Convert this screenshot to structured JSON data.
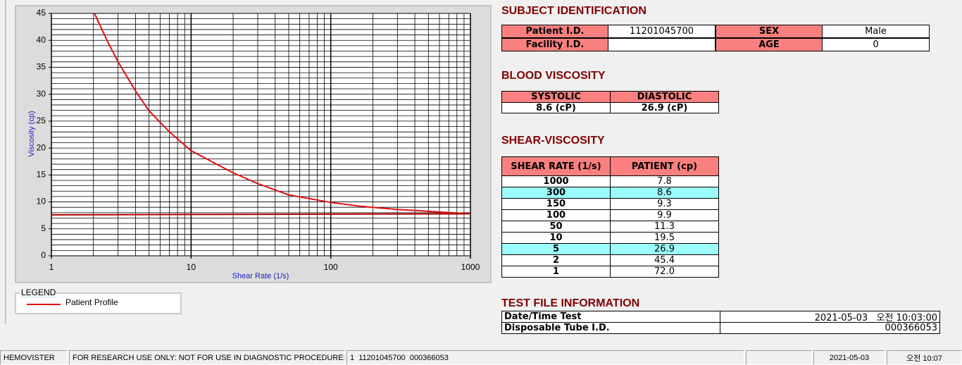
{
  "chart_data": {
    "type": "line",
    "x_label": "Shear Rate (1/s)",
    "y_label": "Viscosity (cp)",
    "xlim": [
      1,
      1000
    ],
    "xticks": [
      1,
      10,
      100,
      1000
    ],
    "xscale": "log",
    "ylim": [
      0,
      45
    ],
    "yticks": [
      0,
      5,
      10,
      15,
      20,
      25,
      30,
      35,
      40,
      45
    ],
    "grid": true,
    "legend_title": "LEGEND",
    "series": [
      {
        "name": "Patient Profile",
        "color": "#e01010",
        "x": [
          2,
          2.5,
          3,
          4,
          5,
          7,
          10,
          20,
          30,
          50,
          100,
          150,
          200,
          300,
          500,
          1000
        ],
        "values": [
          45.4,
          40.0,
          36.0,
          30.6,
          26.9,
          23.0,
          19.5,
          15.4,
          13.4,
          11.3,
          9.9,
          9.3,
          9.0,
          8.6,
          8.25,
          7.8
        ]
      },
      {
        "color": "#b00000",
        "x": [
          1,
          1000
        ],
        "values": [
          7.6,
          7.8
        ]
      }
    ]
  },
  "subject": {
    "title": "SUBJECT IDENTIFICATION",
    "fields": [
      {
        "label": "Patient I.D.",
        "value": "11201045700"
      },
      {
        "label": "SEX",
        "value": "Male"
      },
      {
        "label": "Facility I.D."
      },
      {
        "label": "AGE",
        "value": "0"
      }
    ]
  },
  "blood": {
    "title": "BLOOD VISCOSITY",
    "headers": [
      "SYSTOLIC",
      "DIASTOLIC"
    ],
    "values": [
      "8.6 (cP)",
      "26.9 (cP)"
    ]
  },
  "shear": {
    "title": "SHEAR-VISCOSITY",
    "headers": [
      "SHEAR RATE (1/s)",
      "PATIENT (cp)"
    ],
    "rows": [
      {
        "rate": "1000",
        "cp": "7.8"
      },
      {
        "rate": "300",
        "cp": "8.6",
        "highlighted": true
      },
      {
        "rate": "150",
        "cp": "9.3"
      },
      {
        "rate": "100",
        "cp": "9.9"
      },
      {
        "rate": "50",
        "cp": "11.3"
      },
      {
        "rate": "10",
        "cp": "19.5"
      },
      {
        "rate": "5",
        "cp": "26.9",
        "highlighted": true
      },
      {
        "rate": "2",
        "cp": "45.4"
      },
      {
        "rate": "1",
        "cp": "72.0"
      }
    ]
  },
  "test_file": {
    "title": "TEST FILE INFORMATION",
    "rows": [
      [
        "Date/Time Test",
        "2021-05-03   오전 10:03:00"
      ],
      [
        "Disposable Tube I.D.",
        "000366053"
      ]
    ]
  },
  "status_bar": [
    "HEMOVISTER",
    "FOR RESEARCH USE ONLY: NOT FOR USE IN DIAGNOSTIC PROCEDURES",
    "1  11201045700  000366053",
    "2021-05-03",
    "오전 10:07"
  ]
}
